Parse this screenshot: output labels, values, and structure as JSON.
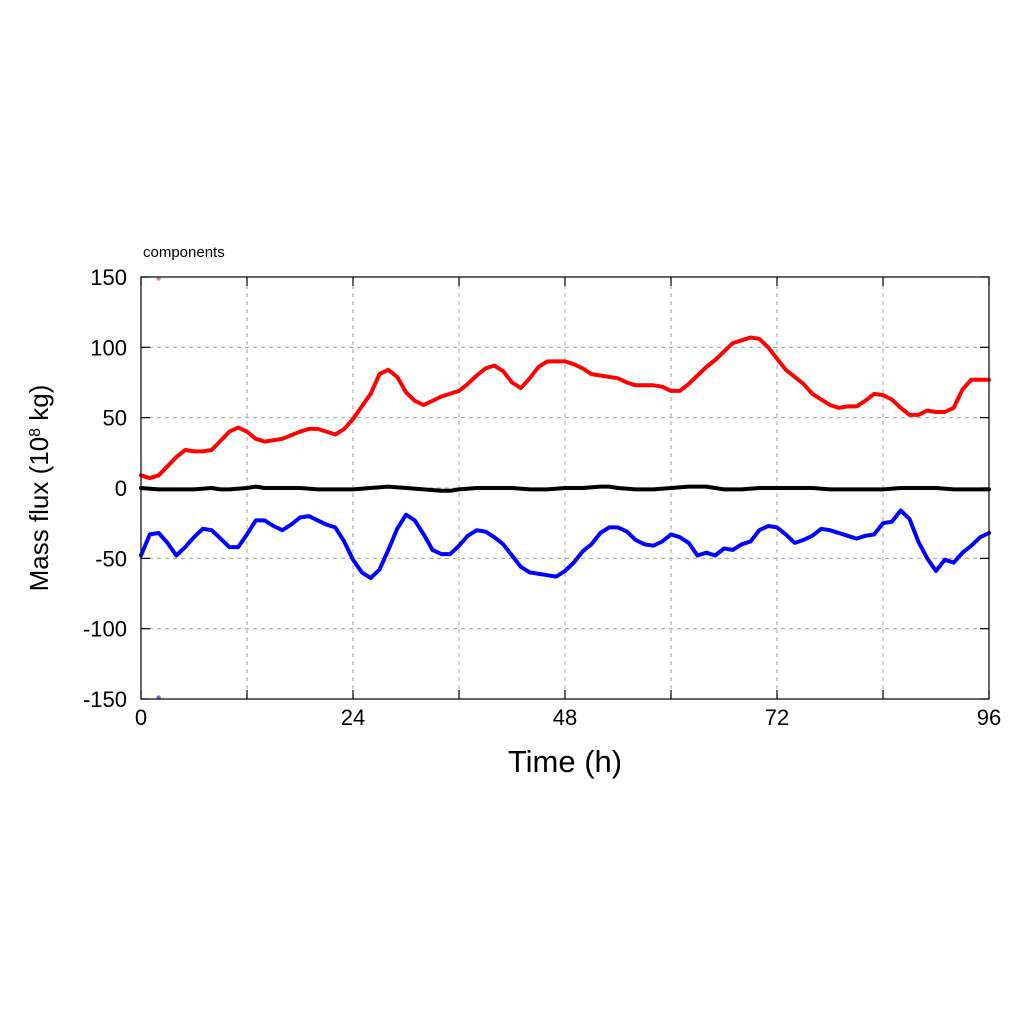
{
  "chart_data": {
    "type": "line",
    "title": "components",
    "xlabel": "Time (h)",
    "ylabel": {
      "prefix": "Mass flux (10",
      "exponent": "8",
      "suffix": " kg)"
    },
    "xlim": [
      0,
      96
    ],
    "ylim": [
      -150,
      150
    ],
    "xticks": [
      0,
      24,
      48,
      72,
      96
    ],
    "xticks_minor": [
      12,
      36,
      60,
      84
    ],
    "yticks": [
      -150,
      -100,
      -50,
      0,
      50,
      100,
      150
    ],
    "grid": true,
    "legend": "none",
    "series": [
      {
        "color": "#ff0000",
        "x": [
          0,
          1,
          2,
          4,
          5,
          6,
          7,
          8,
          10,
          11,
          12,
          13,
          14,
          16,
          18,
          19,
          20,
          22,
          23,
          24,
          25,
          26,
          27,
          28,
          29,
          30,
          31,
          32,
          34,
          36,
          37,
          38,
          39,
          40,
          41,
          42,
          43,
          44,
          45,
          46,
          47,
          48,
          49,
          50,
          51,
          52,
          54,
          55,
          56,
          57,
          58,
          59,
          60,
          61,
          62,
          63,
          64,
          65,
          66,
          67,
          68,
          69,
          70,
          71,
          72,
          73,
          74,
          75,
          76,
          77,
          78,
          79,
          80,
          81,
          82,
          83,
          84,
          85,
          86,
          87,
          88,
          89,
          90,
          91,
          92,
          93,
          94,
          95,
          96
        ],
        "y": [
          9,
          7,
          9,
          22,
          27,
          26,
          26,
          27,
          40,
          43,
          40,
          35,
          33,
          35,
          40,
          42,
          42,
          38,
          42,
          49,
          58,
          67,
          81,
          84,
          79,
          68,
          62,
          59,
          65,
          69,
          74,
          80,
          85,
          87,
          83,
          75,
          71,
          78,
          86,
          90,
          90,
          90,
          88,
          85,
          81,
          80,
          78,
          75,
          73,
          73,
          73,
          72,
          69,
          69,
          74,
          80,
          86,
          91,
          97,
          103,
          105,
          107,
          106,
          100,
          92,
          84,
          79,
          74,
          67,
          63,
          59,
          57,
          58,
          58,
          62,
          67,
          66,
          63,
          57,
          52,
          52,
          55,
          54,
          54,
          57,
          70,
          77,
          77,
          77
        ]
      },
      {
        "color": "#0000ff",
        "x": [
          0,
          1,
          2,
          3,
          4,
          5,
          6,
          7,
          8,
          9,
          10,
          11,
          12,
          13,
          14,
          15,
          16,
          17,
          18,
          19,
          20,
          21,
          22,
          23,
          24,
          25,
          26,
          27,
          28,
          29,
          30,
          31,
          32,
          33,
          34,
          35,
          36,
          37,
          38,
          39,
          40,
          41,
          42,
          43,
          44,
          45,
          46,
          47,
          48,
          49,
          50,
          51,
          52,
          53,
          54,
          55,
          56,
          57,
          58,
          59,
          60,
          61,
          62,
          63,
          64,
          65,
          66,
          67,
          68,
          69,
          70,
          71,
          72,
          73,
          74,
          75,
          76,
          77,
          78,
          79,
          80,
          81,
          82,
          83,
          84,
          85,
          86,
          87,
          88,
          89,
          90,
          91,
          92,
          93,
          94,
          95,
          96
        ],
        "y": [
          -48,
          -33,
          -32,
          -39,
          -48,
          -42,
          -35,
          -29,
          -30,
          -36,
          -42,
          -42,
          -33,
          -23,
          -23,
          -27,
          -30,
          -26,
          -21,
          -20,
          -23,
          -26,
          -28,
          -38,
          -51,
          -60,
          -64,
          -58,
          -44,
          -29,
          -19,
          -23,
          -33,
          -44,
          -47,
          -47,
          -41,
          -34,
          -30,
          -31,
          -35,
          -40,
          -48,
          -56,
          -60,
          -61,
          -62,
          -63,
          -59,
          -53,
          -45,
          -40,
          -32,
          -28,
          -28,
          -31,
          -37,
          -40,
          -41,
          -38,
          -33,
          -35,
          -39,
          -48,
          -46,
          -48,
          -43,
          -44,
          -40,
          -38,
          -30,
          -27,
          -28,
          -33,
          -39,
          -37,
          -34,
          -29,
          -30,
          -32,
          -34,
          -36,
          -34,
          -33,
          -25,
          -24,
          -16,
          -22,
          -38,
          -50,
          -59,
          -51,
          -53,
          -46,
          -41,
          -35,
          -32
        ]
      },
      {
        "color": "#000000",
        "x": [
          0,
          2,
          4,
          6,
          8,
          9,
          10,
          12,
          13,
          14,
          16,
          18,
          20,
          22,
          24,
          26,
          28,
          30,
          32,
          34,
          35,
          36,
          38,
          40,
          42,
          44,
          46,
          48,
          50,
          52,
          53,
          54,
          56,
          58,
          60,
          62,
          64,
          66,
          68,
          70,
          72,
          74,
          76,
          78,
          80,
          82,
          84,
          86,
          88,
          90,
          92,
          94,
          96
        ],
        "y": [
          0,
          -1,
          -1,
          -1,
          0,
          -1,
          -1,
          0,
          1,
          0,
          0,
          0,
          -1,
          -1,
          -1,
          0,
          1,
          0,
          -1,
          -2,
          -2,
          -1,
          0,
          0,
          0,
          -1,
          -1,
          0,
          0,
          1,
          1,
          0,
          -1,
          -1,
          0,
          1,
          1,
          -1,
          -1,
          0,
          0,
          0,
          0,
          -1,
          -1,
          -1,
          -1,
          0,
          0,
          0,
          -1,
          -1,
          -1
        ]
      }
    ],
    "corner_markers": [
      {
        "color": "#f08080",
        "x": 2,
        "y": 149
      },
      {
        "color": "#6a6aff",
        "x": 2,
        "y": -149
      }
    ]
  }
}
